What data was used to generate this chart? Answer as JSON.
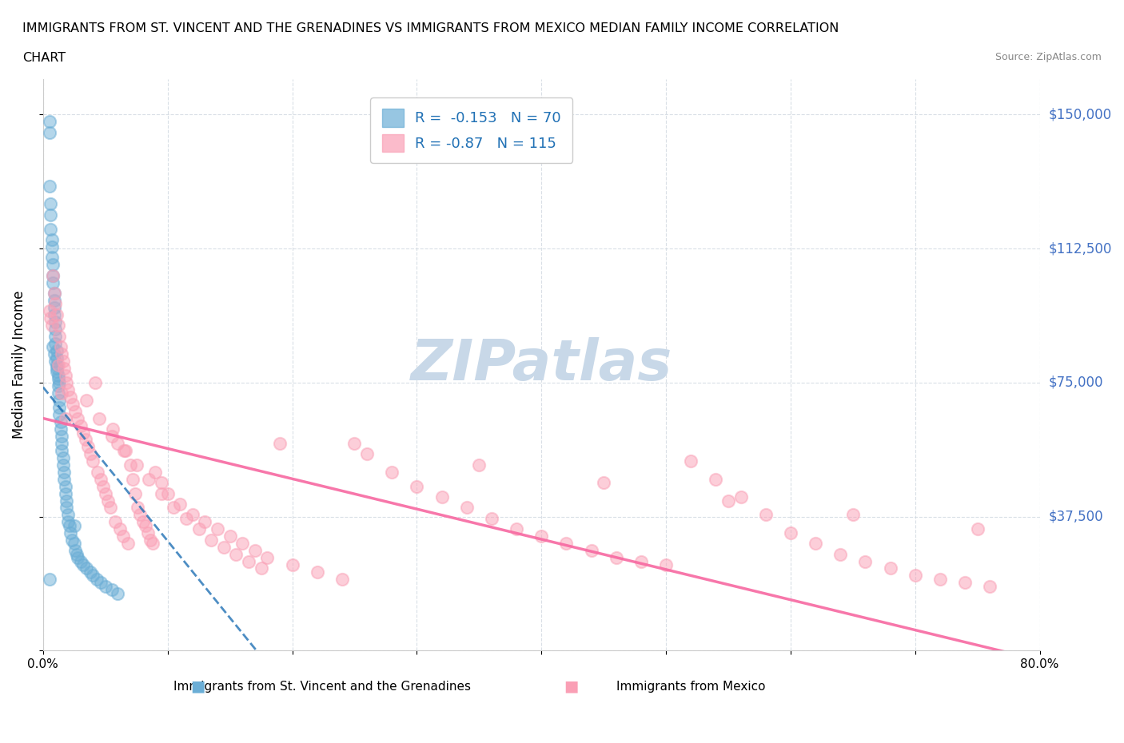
{
  "title_line1": "IMMIGRANTS FROM ST. VINCENT AND THE GRENADINES VS IMMIGRANTS FROM MEXICO MEDIAN FAMILY INCOME CORRELATION",
  "title_line2": "CHART",
  "source": "Source: ZipAtlas.com",
  "xlabel_bottom": "",
  "ylabel": "Median Family Income",
  "x_min": 0.0,
  "x_max": 0.8,
  "y_min": 0,
  "y_max": 160000,
  "y_ticks": [
    0,
    37500,
    75000,
    112500,
    150000
  ],
  "y_tick_labels": [
    "",
    "$37,500",
    "$75,000",
    "$112,500",
    "$150,000"
  ],
  "x_ticks": [
    0.0,
    0.1,
    0.2,
    0.3,
    0.4,
    0.5,
    0.6,
    0.7,
    0.8
  ],
  "x_tick_labels": [
    "0.0%",
    "",
    "",
    "",
    "",
    "",
    "",
    "",
    "80.0%"
  ],
  "r_blue": -0.153,
  "n_blue": 70,
  "r_pink": -0.87,
  "n_pink": 115,
  "blue_color": "#6baed6",
  "pink_color": "#fa9fb5",
  "blue_line_color": "#2171b5",
  "pink_line_color": "#f768a1",
  "watermark": "ZIPatlas",
  "watermark_color": "#c8d8e8",
  "background_color": "#ffffff",
  "grid_color": "#d0d8e0",
  "legend_r_color": "#2171b5",
  "legend_n_color": "#2171b5",
  "blue_scatter_x": [
    0.005,
    0.005,
    0.005,
    0.006,
    0.006,
    0.006,
    0.007,
    0.007,
    0.007,
    0.008,
    0.008,
    0.008,
    0.009,
    0.009,
    0.009,
    0.009,
    0.01,
    0.01,
    0.01,
    0.01,
    0.011,
    0.011,
    0.011,
    0.011,
    0.012,
    0.012,
    0.012,
    0.013,
    0.013,
    0.013,
    0.014,
    0.014,
    0.015,
    0.015,
    0.015,
    0.016,
    0.016,
    0.017,
    0.017,
    0.018,
    0.018,
    0.019,
    0.019,
    0.02,
    0.02,
    0.021,
    0.022,
    0.023,
    0.025,
    0.026,
    0.027,
    0.028,
    0.03,
    0.032,
    0.035,
    0.038,
    0.04,
    0.043,
    0.046,
    0.05,
    0.055,
    0.06,
    0.008,
    0.009,
    0.01,
    0.011,
    0.012,
    0.013,
    0.025,
    0.005
  ],
  "blue_scatter_y": [
    148000,
    145000,
    130000,
    125000,
    122000,
    118000,
    115000,
    113000,
    110000,
    108000,
    105000,
    103000,
    100000,
    98000,
    96000,
    94000,
    92000,
    90000,
    88000,
    86000,
    84000,
    82000,
    80000,
    78000,
    76000,
    74000,
    72000,
    70000,
    68000,
    66000,
    64000,
    62000,
    60000,
    58000,
    56000,
    54000,
    52000,
    50000,
    48000,
    46000,
    44000,
    42000,
    40000,
    38000,
    36000,
    35000,
    33000,
    31000,
    30000,
    28000,
    27000,
    26000,
    25000,
    24000,
    23000,
    22000,
    21000,
    20000,
    19000,
    18000,
    17000,
    16000,
    85000,
    83000,
    81000,
    79000,
    77000,
    75000,
    35000,
    20000
  ],
  "pink_scatter_x": [
    0.005,
    0.006,
    0.007,
    0.008,
    0.009,
    0.01,
    0.011,
    0.012,
    0.013,
    0.014,
    0.015,
    0.016,
    0.017,
    0.018,
    0.019,
    0.02,
    0.022,
    0.024,
    0.026,
    0.028,
    0.03,
    0.032,
    0.034,
    0.036,
    0.038,
    0.04,
    0.042,
    0.044,
    0.046,
    0.048,
    0.05,
    0.052,
    0.054,
    0.056,
    0.058,
    0.06,
    0.062,
    0.064,
    0.066,
    0.068,
    0.07,
    0.072,
    0.074,
    0.076,
    0.078,
    0.08,
    0.082,
    0.084,
    0.086,
    0.088,
    0.09,
    0.095,
    0.1,
    0.11,
    0.12,
    0.13,
    0.14,
    0.15,
    0.16,
    0.17,
    0.18,
    0.19,
    0.2,
    0.22,
    0.24,
    0.26,
    0.28,
    0.3,
    0.32,
    0.34,
    0.36,
    0.38,
    0.4,
    0.42,
    0.44,
    0.46,
    0.48,
    0.5,
    0.52,
    0.54,
    0.56,
    0.58,
    0.6,
    0.62,
    0.64,
    0.66,
    0.68,
    0.7,
    0.72,
    0.74,
    0.76,
    0.012,
    0.015,
    0.018,
    0.25,
    0.35,
    0.45,
    0.55,
    0.65,
    0.75,
    0.035,
    0.045,
    0.055,
    0.065,
    0.075,
    0.085,
    0.095,
    0.105,
    0.115,
    0.125,
    0.135,
    0.145,
    0.155,
    0.165,
    0.175
  ],
  "pink_scatter_y": [
    95000,
    93000,
    91000,
    105000,
    100000,
    97000,
    94000,
    91000,
    88000,
    85000,
    83000,
    81000,
    79000,
    77000,
    75000,
    73000,
    71000,
    69000,
    67000,
    65000,
    63000,
    61000,
    59000,
    57000,
    55000,
    53000,
    75000,
    50000,
    48000,
    46000,
    44000,
    42000,
    40000,
    62000,
    36000,
    58000,
    34000,
    32000,
    56000,
    30000,
    52000,
    48000,
    44000,
    40000,
    38000,
    36000,
    35000,
    33000,
    31000,
    30000,
    50000,
    47000,
    44000,
    41000,
    38000,
    36000,
    34000,
    32000,
    30000,
    28000,
    26000,
    58000,
    24000,
    22000,
    20000,
    55000,
    50000,
    46000,
    43000,
    40000,
    37000,
    34000,
    32000,
    30000,
    28000,
    26000,
    25000,
    24000,
    53000,
    48000,
    43000,
    38000,
    33000,
    30000,
    27000,
    25000,
    23000,
    21000,
    20000,
    19000,
    18000,
    80000,
    72000,
    65000,
    58000,
    52000,
    47000,
    42000,
    38000,
    34000,
    70000,
    65000,
    60000,
    56000,
    52000,
    48000,
    44000,
    40000,
    37000,
    34000,
    31000,
    29000,
    27000,
    25000,
    23000
  ]
}
